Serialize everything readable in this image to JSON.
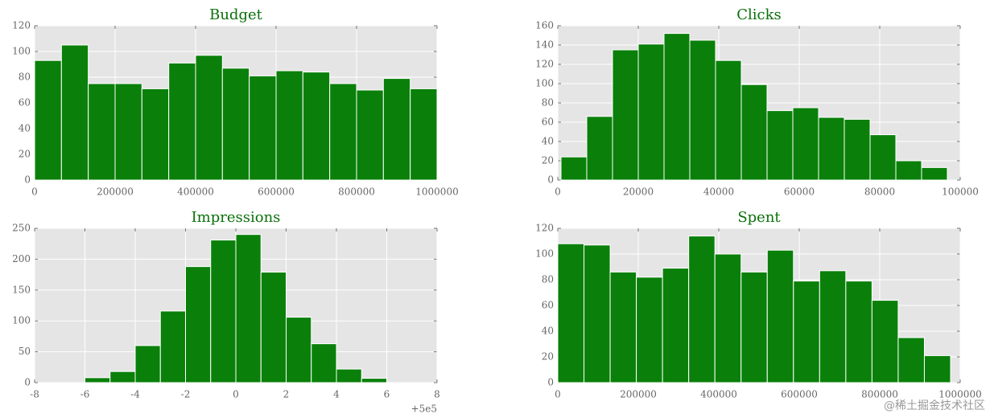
{
  "chart_data": [
    {
      "type": "histogram",
      "title": "Budget",
      "bins": [
        0,
        66667,
        133333,
        200000,
        266667,
        333333,
        400000,
        466667,
        533333,
        600000,
        666667,
        733333,
        800000,
        866667,
        933333,
        1000000
      ],
      "counts": [
        93,
        105,
        75,
        75,
        71,
        91,
        97,
        87,
        81,
        85,
        84,
        75,
        70,
        79,
        71
      ],
      "color": "#0a800a",
      "xlim": [
        0,
        1000000
      ],
      "ylim": [
        0,
        120
      ],
      "xticks": [
        0,
        200000,
        400000,
        600000,
        800000,
        1000000
      ],
      "yticks": [
        0,
        20,
        40,
        60,
        80,
        100,
        120
      ],
      "grid": true
    },
    {
      "type": "histogram",
      "title": "Clicks",
      "bins": [
        800,
        7200,
        13600,
        20000,
        26400,
        32800,
        39200,
        45600,
        52000,
        58400,
        64800,
        71200,
        77600,
        84000,
        90400,
        96800
      ],
      "counts": [
        24,
        66,
        135,
        141,
        152,
        145,
        124,
        99,
        72,
        75,
        65,
        63,
        47,
        20,
        13
      ],
      "color": "#0a800a",
      "xlim": [
        0,
        100000
      ],
      "ylim": [
        0,
        160
      ],
      "xticks": [
        0,
        20000,
        40000,
        60000,
        80000,
        100000
      ],
      "yticks": [
        0,
        20,
        40,
        60,
        80,
        100,
        120,
        140,
        160
      ],
      "grid": true
    },
    {
      "type": "histogram",
      "title": "Impressions",
      "x_offset_label": "+5e5",
      "bins": [
        -6,
        -5,
        -4,
        -3,
        -2,
        -1,
        0,
        1,
        2,
        3,
        4,
        5,
        6
      ],
      "counts": [
        8,
        18,
        60,
        116,
        188,
        231,
        240,
        179,
        106,
        63,
        22,
        7
      ],
      "color": "#0a800a",
      "xlim": [
        -8,
        8
      ],
      "ylim": [
        0,
        250
      ],
      "xticks": [
        -8,
        -6,
        -4,
        -2,
        0,
        2,
        4,
        6,
        8
      ],
      "yticks": [
        0,
        50,
        100,
        150,
        200,
        250
      ],
      "grid": true
    },
    {
      "type": "histogram",
      "title": "Spent",
      "bins": [
        0,
        65067,
        130133,
        195200,
        260267,
        325333,
        390400,
        455467,
        520533,
        585600,
        650667,
        715733,
        780800,
        845867,
        910933,
        976000
      ],
      "counts": [
        108,
        107,
        86,
        82,
        89,
        114,
        100,
        86,
        103,
        79,
        87,
        79,
        64,
        35,
        21
      ],
      "color": "#0a800a",
      "xlim": [
        0,
        1000000
      ],
      "ylim": [
        0,
        120
      ],
      "xticks": [
        0,
        200000,
        400000,
        600000,
        800000,
        1000000
      ],
      "yticks": [
        0,
        20,
        40,
        60,
        80,
        100,
        120
      ],
      "grid": true
    }
  ],
  "watermark": "@稀土掘金技术社区"
}
